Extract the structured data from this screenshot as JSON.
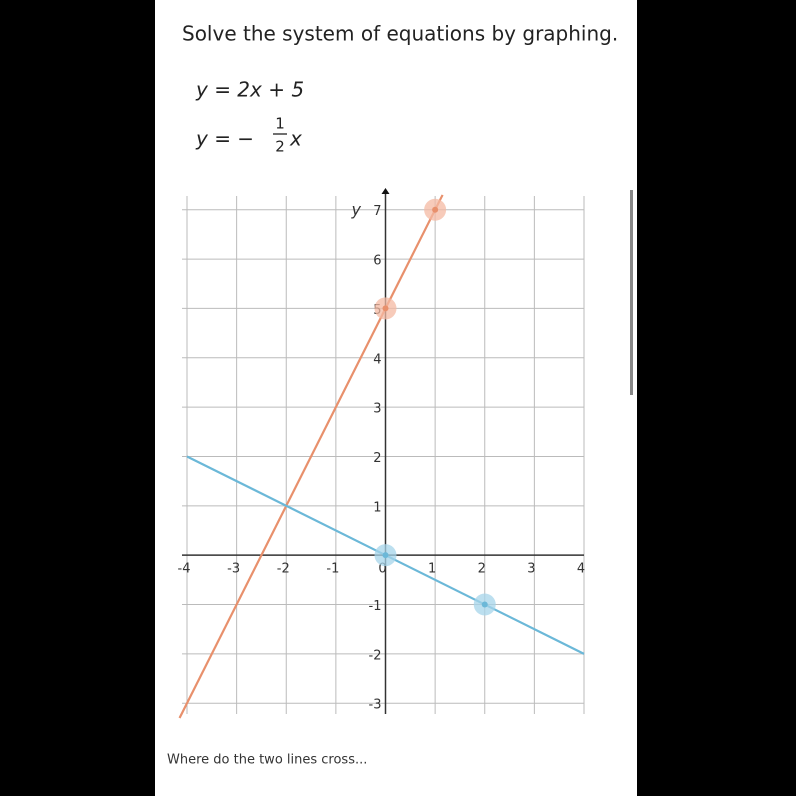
{
  "header": {
    "title": "Solve the system of equations by graphing."
  },
  "equations": {
    "first": "y = 2x + 5",
    "second": {
      "lhs": "y = −",
      "numerator": "1",
      "denominator": "2",
      "variable": "x"
    }
  },
  "footer": {
    "text": "Where do the two lines cross..."
  },
  "chart_data": {
    "type": "line",
    "y_label": "y",
    "xlim": [
      -4,
      4
    ],
    "ylim": [
      -3.3,
      7.4
    ],
    "xticks": [
      -4,
      -3,
      -2,
      -1,
      0,
      1,
      2,
      3,
      4
    ],
    "yticks": [
      -3,
      -2,
      -1,
      1,
      2,
      3,
      4,
      5,
      6,
      7
    ],
    "grid": true,
    "series": [
      {
        "color": "#e8906c",
        "halo": "#f4b9a3",
        "x": [
          -4.15,
          1.15
        ],
        "values": [
          -3.3,
          7.3
        ],
        "points": {
          "x": [
            0,
            1
          ],
          "y": [
            5,
            7
          ]
        }
      },
      {
        "color": "#6bb8d8",
        "halo": "#a6d4ea",
        "x": [
          -4,
          4
        ],
        "values": [
          2,
          -2
        ],
        "points": {
          "x": [
            0,
            2
          ],
          "y": [
            0,
            -1
          ]
        }
      }
    ]
  }
}
